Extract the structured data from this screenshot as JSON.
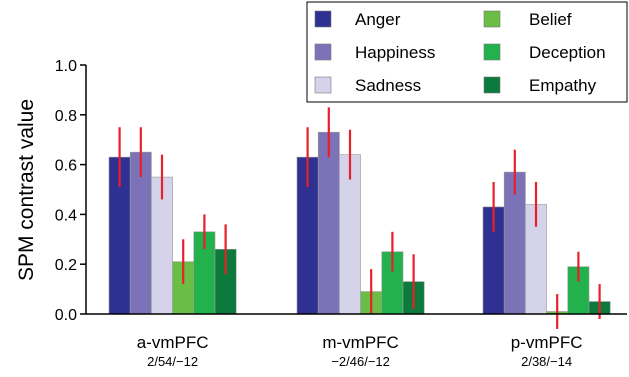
{
  "chart_data": {
    "type": "bar",
    "title": "",
    "xlabel": "",
    "ylabel": "SPM contrast value",
    "ylim": [
      0,
      1.0
    ],
    "yticks": [
      "0.0",
      "0.2",
      "0.4",
      "0.6",
      "0.8",
      "1.0"
    ],
    "grid": false,
    "legend_position": "top-right",
    "categories": [
      "a-vmPFC",
      "m-vmPFC",
      "p-vmPFC"
    ],
    "category_sublabels": [
      "2/54/−12",
      "−2/46/−12",
      "2/38/−14"
    ],
    "error_bar_color": "#e8202a",
    "series": [
      {
        "name": "Anger",
        "color": "#2e3192",
        "values": [
          0.63,
          0.63,
          0.43
        ],
        "errors": [
          0.12,
          0.12,
          0.1
        ]
      },
      {
        "name": "Happiness",
        "color": "#7b72b8",
        "values": [
          0.65,
          0.73,
          0.57
        ],
        "errors": [
          0.1,
          0.1,
          0.09
        ]
      },
      {
        "name": "Sadness",
        "color": "#d5d3ea",
        "values": [
          0.55,
          0.64,
          0.44
        ],
        "errors": [
          0.09,
          0.1,
          0.09
        ]
      },
      {
        "name": "Belief",
        "color": "#6abd45",
        "values": [
          0.21,
          0.09,
          0.01
        ],
        "errors": [
          0.09,
          0.09,
          0.07
        ]
      },
      {
        "name": "Deception",
        "color": "#22b14c",
        "values": [
          0.33,
          0.25,
          0.19
        ],
        "errors": [
          0.07,
          0.08,
          0.06
        ]
      },
      {
        "name": "Empathy",
        "color": "#0c7a3c",
        "values": [
          0.26,
          0.13,
          0.05
        ],
        "errors": [
          0.1,
          0.11,
          0.07
        ]
      }
    ]
  }
}
